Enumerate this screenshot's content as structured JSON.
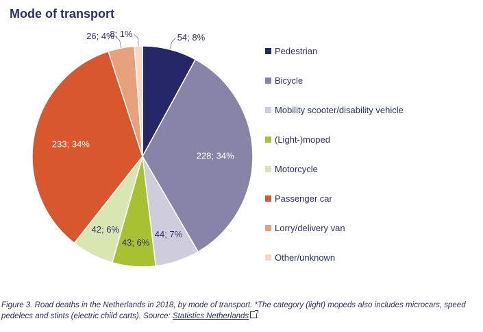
{
  "chart_data": {
    "type": "pie",
    "title": "Mode of transport",
    "categories": [
      "Pedestrian",
      "Bicycle",
      "Mobility scooter/disability vehicle",
      "(Light-)moped",
      "Motorcycle",
      "Passenger car",
      "Lorry/delivery van",
      "Other/unknown"
    ],
    "values": [
      54,
      228,
      44,
      43,
      42,
      233,
      26,
      8
    ],
    "percentages": [
      8,
      34,
      7,
      6,
      6,
      34,
      4,
      1
    ],
    "data_labels": [
      "54; 8%",
      "228; 34%",
      "44; 7%",
      "43; 6%",
      "42; 6%",
      "233; 34%",
      "26; 4%",
      "8; 1%"
    ],
    "colors": [
      "#262766",
      "#8884a8",
      "#cfcddd",
      "#a8c132",
      "#d8e6b2",
      "#d9572d",
      "#e6a17c",
      "#f7d7c6"
    ],
    "label_colors": [
      "#2b2f6b",
      "#ffffff",
      "#2b2f6b",
      "#2b2f6b",
      "#2b2f6b",
      "#ffffff",
      "#2b2f6b",
      "#2b2f6b"
    ],
    "legend_position": "right"
  },
  "caption": {
    "text_before_link": "Figure 3. Road deaths in the Netherlands in 2018, by mode of transport. *The category (light) mopeds also includes microcars, speed pedelecs and stints (electric child carts). Source: ",
    "link_text": "Statistics Netherlands",
    "text_after_link": "."
  },
  "icons": {
    "external_link": "external-link-icon"
  }
}
